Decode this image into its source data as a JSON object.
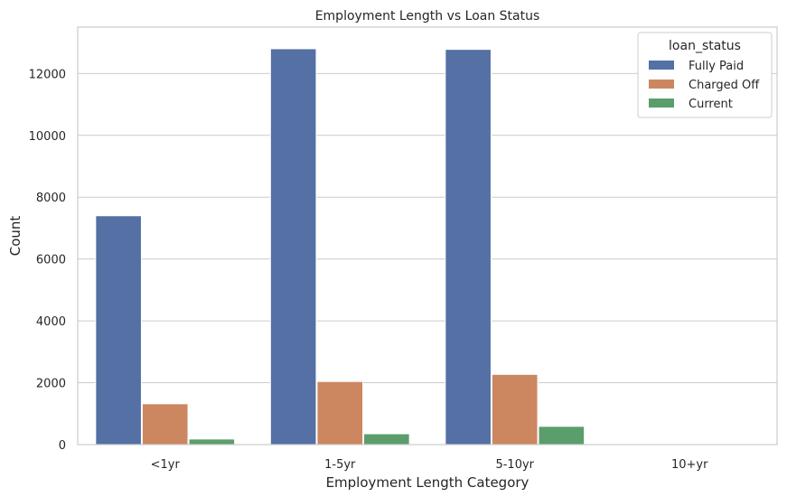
{
  "chart_data": {
    "type": "bar",
    "title": "Employment Length vs Loan Status",
    "xlabel": "Employment Length Category",
    "ylabel": "Count",
    "categories": [
      "<1yr",
      "1-5yr",
      "5-10yr",
      "10+yr"
    ],
    "ylim": [
      0,
      13500
    ],
    "yticks": [
      0,
      2000,
      4000,
      6000,
      8000,
      10000,
      12000
    ],
    "grid": "horizontal",
    "legend": {
      "title": "loan_status",
      "placement": "top-right"
    },
    "series": [
      {
        "name": "Fully Paid",
        "color": "#5470a4",
        "values": [
          7400,
          12800,
          12780,
          0
        ]
      },
      {
        "name": "Charged Off",
        "color": "#cc8660",
        "values": [
          1320,
          2040,
          2270,
          0
        ]
      },
      {
        "name": "Current",
        "color": "#5b9e6b",
        "values": [
          180,
          350,
          590,
          0
        ]
      }
    ]
  }
}
